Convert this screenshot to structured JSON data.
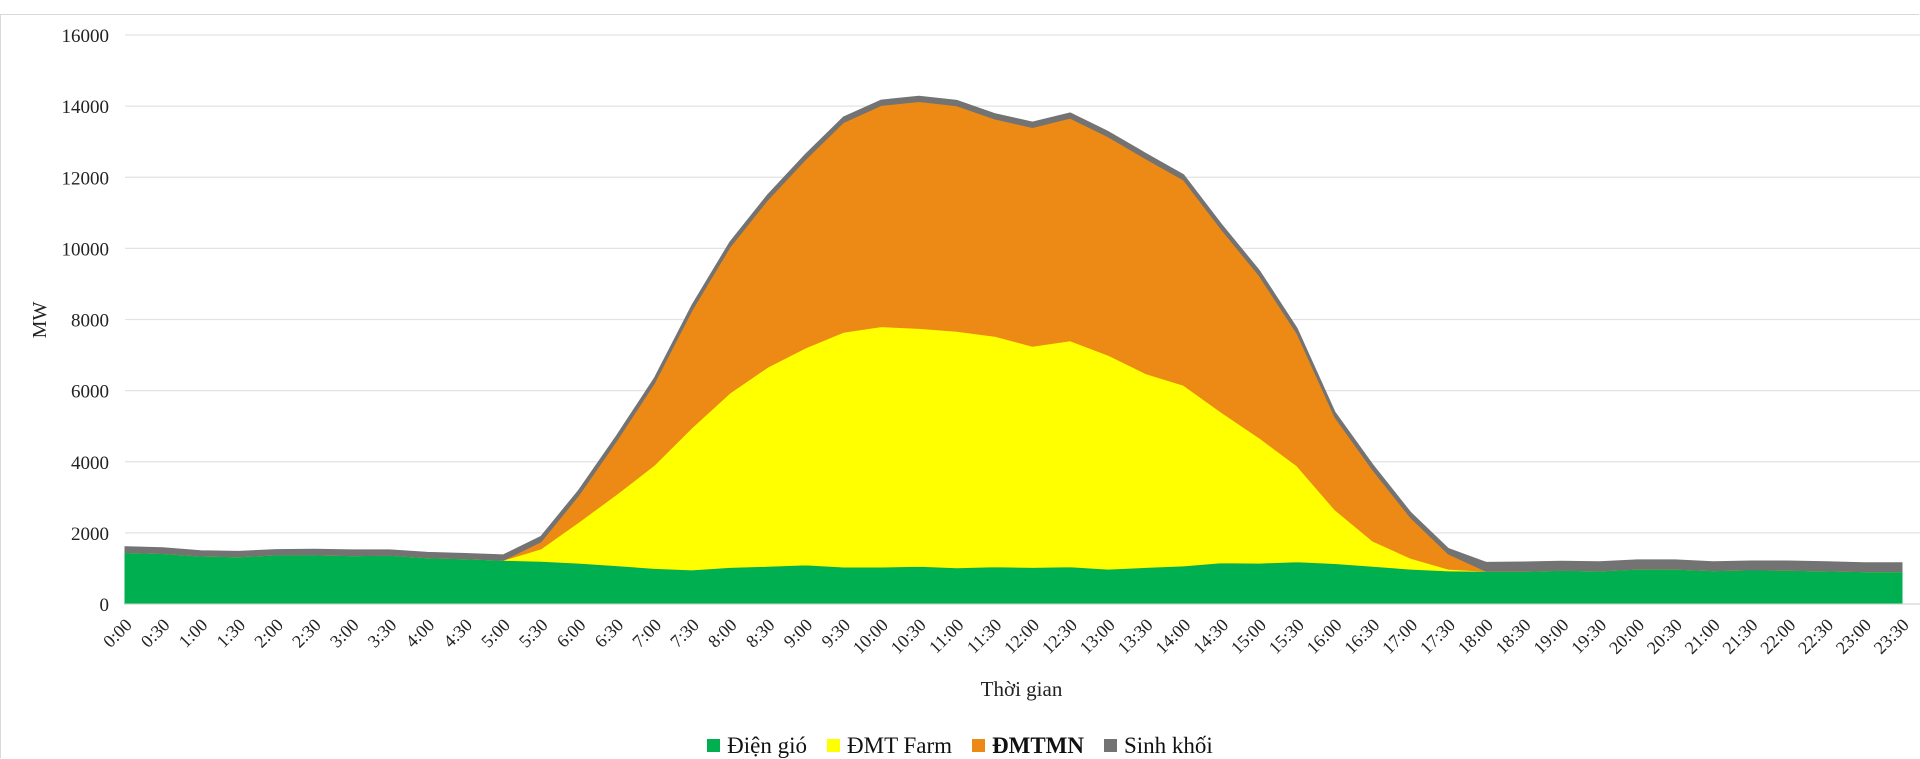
{
  "chart_data": {
    "type": "area",
    "stacked": true,
    "ylabel": "MW",
    "xlabel": "Thời gian",
    "ylim": [
      0,
      16000
    ],
    "yticks": [
      0,
      2000,
      4000,
      6000,
      8000,
      10000,
      12000,
      14000,
      16000
    ],
    "grid": true,
    "legend_position": "bottom",
    "categories": [
      "0:00",
      "0:30",
      "1:00",
      "1:30",
      "2:00",
      "2:30",
      "3:00",
      "3:30",
      "4:00",
      "4:30",
      "5:00",
      "5:30",
      "6:00",
      "6:30",
      "7:00",
      "7:30",
      "8:00",
      "8:30",
      "9:00",
      "9:30",
      "10:00",
      "10:30",
      "11:00",
      "11:30",
      "12:00",
      "12:30",
      "13:00",
      "13:30",
      "14:00",
      "14:30",
      "15:00",
      "15:30",
      "16:00",
      "16:30",
      "17:00",
      "17:30",
      "18:00",
      "18:30",
      "19:00",
      "19:30",
      "20:00",
      "20:30",
      "21:00",
      "21:30",
      "22:00",
      "22:30",
      "23:00",
      "23:30"
    ],
    "series": [
      {
        "name": "Điện gió",
        "color": "#00b050",
        "bold": false,
        "values": [
          1450,
          1420,
          1350,
          1330,
          1380,
          1380,
          1360,
          1370,
          1300,
          1270,
          1230,
          1200,
          1150,
          1080,
          1000,
          960,
          1030,
          1060,
          1100,
          1040,
          1040,
          1060,
          1020,
          1050,
          1030,
          1050,
          980,
          1030,
          1070,
          1160,
          1150,
          1190,
          1140,
          1060,
          980,
          930,
          920,
          920,
          950,
          930,
          980,
          980,
          940,
          960,
          950,
          930,
          910,
          910
        ]
      },
      {
        "name": "ĐMT Farm",
        "color": "#ffff00",
        "bold": false,
        "values": [
          0,
          0,
          0,
          0,
          0,
          0,
          0,
          0,
          0,
          0,
          0,
          350,
          1150,
          2000,
          2900,
          4000,
          4900,
          5600,
          6100,
          6600,
          6760,
          6690,
          6650,
          6480,
          6220,
          6350,
          6020,
          5450,
          5080,
          4230,
          3520,
          2690,
          1510,
          710,
          310,
          50,
          0,
          0,
          0,
          0,
          0,
          0,
          0,
          0,
          0,
          0,
          0,
          0
        ]
      },
      {
        "name": "ĐMTMN",
        "color": "#ed8a15",
        "bold": true,
        "values": [
          0,
          0,
          0,
          0,
          0,
          0,
          0,
          0,
          0,
          0,
          0,
          200,
          750,
          1500,
          2300,
          3300,
          4100,
          4700,
          5300,
          5900,
          6220,
          6380,
          6340,
          6110,
          6150,
          6260,
          6140,
          6040,
          5770,
          5140,
          4560,
          3720,
          2600,
          2000,
          1140,
          430,
          0,
          0,
          0,
          0,
          0,
          0,
          0,
          0,
          0,
          0,
          0,
          0
        ]
      },
      {
        "name": "Sinh khối",
        "color": "#737373",
        "bold": false,
        "values": [
          160,
          160,
          150,
          150,
          150,
          160,
          160,
          150,
          150,
          150,
          150,
          150,
          150,
          150,
          150,
          150,
          150,
          150,
          150,
          150,
          150,
          150,
          150,
          150,
          150,
          150,
          150,
          150,
          150,
          150,
          150,
          150,
          150,
          150,
          150,
          150,
          250,
          260,
          250,
          260,
          260,
          260,
          250,
          250,
          260,
          260,
          250,
          250
        ]
      }
    ]
  }
}
